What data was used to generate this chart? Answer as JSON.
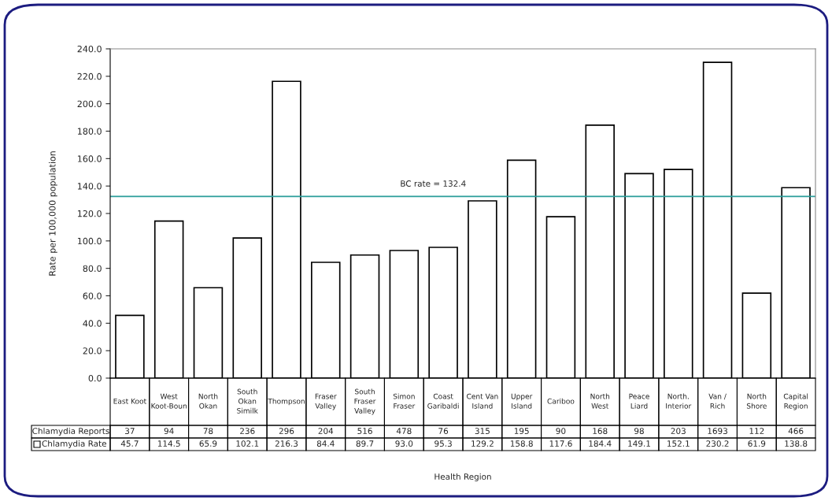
{
  "chart_data": {
    "type": "bar",
    "annotations": [
      "Health Region"
    ],
    "ylabel": "Rate per 100,000 population",
    "categories": [
      "East Koot",
      "West Koot-Boun",
      "North Okan",
      "South Okan Similk",
      "Thompson",
      "Fraser Valley",
      "South Fraser Valley",
      "Simon Fraser",
      "Coast Garibaldi",
      "Cent Van Island",
      "Upper Island",
      "Cariboo",
      "North West",
      "Peace Liard",
      "North. Interior",
      "Van / Rich",
      "North Shore",
      "Capital Region"
    ],
    "series": [
      {
        "name": "Chlamydia Reports",
        "values": [
          null,
          null,
          null,
          null,
          null,
          null,
          null,
          null,
          null,
          null,
          null,
          null,
          null,
          null,
          null,
          null,
          null,
          null
        ],
        "value_labels": [
          "37",
          "94",
          "78",
          "236",
          "296",
          "204",
          "516",
          "478",
          "76",
          "315",
          "195",
          "90",
          "168",
          "98",
          "203",
          "1693",
          "112",
          "466"
        ]
      },
      {
        "name": "Chlamydia Rate",
        "color": "#ffffff",
        "values": [
          45.7,
          114.5,
          65.9,
          102.1,
          216.3,
          84.4,
          89.7,
          93.0,
          95.3,
          129.2,
          158.8,
          117.6,
          184.4,
          149.1,
          152.1,
          230.2,
          61.9,
          138.8
        ],
        "value_labels": [
          "45.7",
          "114.5",
          "65.9",
          "102.1",
          "216.3",
          "84.4",
          "89.7",
          "93.0",
          "95.3",
          "129.2",
          "158.8",
          "117.6",
          "184.4",
          "149.1",
          "152.1",
          "230.2",
          "61.9",
          "138.8"
        ]
      }
    ],
    "ylim": [
      0,
      240
    ],
    "yticks": [
      {
        "value": 0,
        "label": "0.0"
      },
      {
        "value": 20,
        "label": "20.0"
      },
      {
        "value": 40,
        "label": "40.0"
      },
      {
        "value": 60,
        "label": "60.0"
      },
      {
        "value": 80,
        "label": "80.0"
      },
      {
        "value": 100,
        "label": "100.0"
      },
      {
        "value": 120,
        "label": "120.0"
      },
      {
        "value": 140,
        "label": "140.0"
      },
      {
        "value": 160,
        "label": "160.0"
      },
      {
        "value": 180,
        "label": "180.0"
      },
      {
        "value": 200,
        "label": "200.0"
      },
      {
        "value": 220,
        "label": "220.0"
      },
      {
        "value": 240,
        "label": "240.0"
      }
    ],
    "ref_lines": [
      {
        "axis": "y",
        "value": 132.4,
        "label": "BC rate = 132.4",
        "color": "#2a9d9a"
      }
    ],
    "grid": false,
    "legend": "bottom"
  }
}
